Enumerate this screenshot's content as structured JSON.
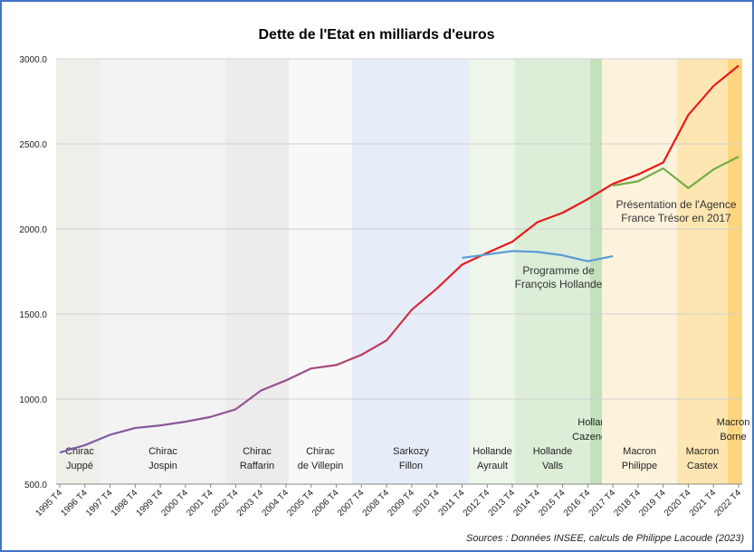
{
  "chart_data": {
    "type": "line",
    "title": "Dette de l'Etat en milliards d'euros",
    "source": "Sources : Données INSEE, calculs de Philippe Lacoude (2023)",
    "categories": [
      "1995 T4",
      "1996 T4",
      "1997 T4",
      "1998 T4",
      "1999 T4",
      "2000 T4",
      "2001 T4",
      "2002 T4",
      "2003 T4",
      "2004 T4",
      "2005 T4",
      "2006 T4",
      "2007 T4",
      "2008 T4",
      "2009 T4",
      "2010 T4",
      "2011 T4",
      "2012 T4",
      "2013 T4",
      "2014 T4",
      "2015 T4",
      "2016 T4",
      "2017 T4",
      "2018 T4",
      "2019 T4",
      "2020 T4",
      "2021 T4",
      "2022 T4"
    ],
    "series": [
      {
        "color": "#e8191a",
        "values": [
          686,
          729,
          790,
          830,
          845,
          867,
          895,
          940,
          1050,
          1110,
          1180,
          1200,
          1260,
          1345,
          1525,
          1650,
          1790,
          1860,
          1925,
          2040,
          2095,
          2175,
          2265,
          2320,
          2390,
          2670,
          2840,
          2960
        ]
      },
      {
        "color": "#5b9bd5",
        "values": [
          null,
          null,
          null,
          null,
          null,
          null,
          null,
          null,
          null,
          null,
          null,
          null,
          null,
          null,
          null,
          null,
          1830,
          1850,
          1870,
          1865,
          1845,
          1810,
          1840,
          null,
          null,
          null,
          null,
          null
        ]
      },
      {
        "color": "#70ad47",
        "values": [
          null,
          null,
          null,
          null,
          null,
          null,
          null,
          null,
          null,
          null,
          null,
          null,
          null,
          null,
          null,
          null,
          null,
          null,
          null,
          null,
          null,
          null,
          2255,
          2280,
          2356,
          2240,
          2350,
          2425
        ]
      }
    ],
    "ylim": [
      500,
      3000
    ],
    "yticks": [
      {
        "value": 500,
        "label": "500.0"
      },
      {
        "value": 1000,
        "label": "1000.0"
      },
      {
        "value": 1500,
        "label": "1500.0"
      },
      {
        "value": 2000,
        "label": "2000.0"
      },
      {
        "value": 2500,
        "label": "2500.0"
      },
      {
        "value": 3000,
        "label": "3000.0"
      }
    ],
    "grid": true,
    "periods": [
      {
        "lines": [
          "Chirac",
          "Juppé"
        ]
      },
      {
        "lines": [
          "Chirac",
          "Jospin"
        ]
      },
      {
        "lines": [
          "Chirac",
          "Raffarin"
        ]
      },
      {
        "lines": [
          "Chirac",
          "de Villepin"
        ]
      },
      {
        "lines": [
          "Sarkozy",
          "Fillon"
        ]
      },
      {
        "lines": [
          "Hollande",
          "Ayrault"
        ]
      },
      {
        "lines": [
          "Hollande",
          "Valls"
        ]
      },
      {
        "lines": [
          "Hollande",
          "Cazeneuve"
        ]
      },
      {
        "lines": [
          "Macron",
          "Philippe"
        ]
      },
      {
        "lines": [
          "Macron",
          "Castex"
        ]
      },
      {
        "lines": [
          "Macron",
          "Borne"
        ]
      }
    ],
    "annotations": [
      {
        "lines": [
          "Programme de",
          "François Hollande"
        ]
      },
      {
        "lines": [
          "Présentation de l'Agence",
          "France Trésor en 2017"
        ]
      }
    ]
  }
}
